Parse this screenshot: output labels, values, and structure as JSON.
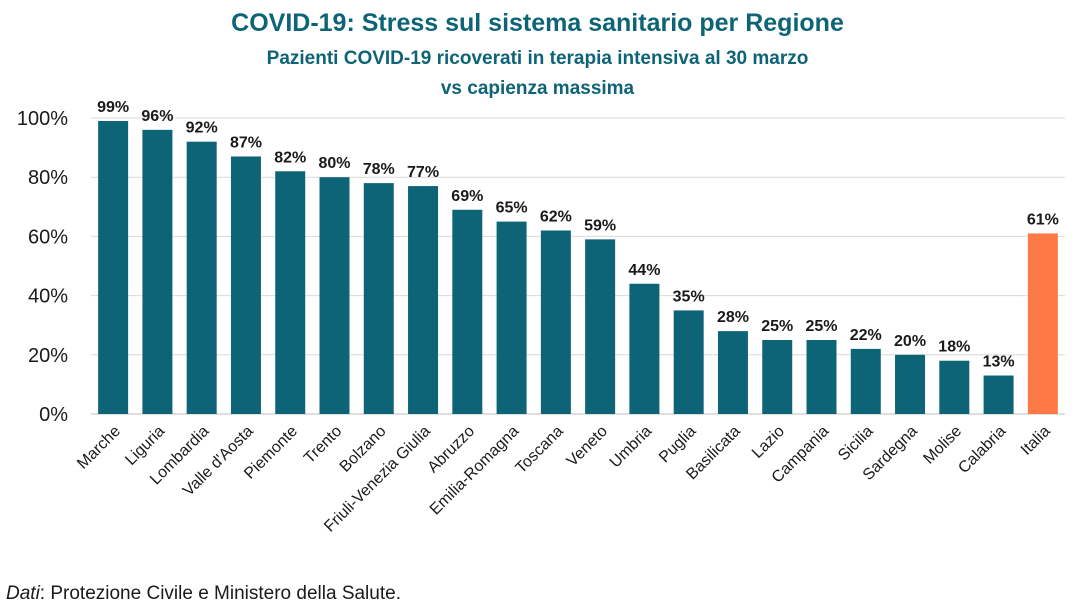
{
  "chart_data": {
    "type": "bar",
    "title": "COVID-19: Stress sul sistema sanitario per Regione",
    "subtitle": "Pazienti COVID-19 ricoverati in terapia intensiva al 30 marzo\nvs capienza massima",
    "categories": [
      "Marche",
      "Liguria",
      "Lombardia",
      "Valle d'Aosta",
      "Piemonte",
      "Trento",
      "Bolzano",
      "Friuli-Venezia Giulia",
      "Abruzzo",
      "Emilia-Romagna",
      "Toscana",
      "Veneto",
      "Umbria",
      "Puglia",
      "Basilicata",
      "Lazio",
      "Campania",
      "Sicilia",
      "Sardegna",
      "Molise",
      "Calabria",
      "Italia"
    ],
    "values": [
      99,
      96,
      92,
      87,
      82,
      80,
      78,
      77,
      69,
      65,
      62,
      59,
      44,
      35,
      28,
      25,
      25,
      22,
      20,
      18,
      13,
      61
    ],
    "data_labels": [
      "99%",
      "96%",
      "92%",
      "87%",
      "82%",
      "80%",
      "78%",
      "77%",
      "69%",
      "65%",
      "62%",
      "59%",
      "44%",
      "35%",
      "28%",
      "25%",
      "25%",
      "22%",
      "20%",
      "18%",
      "13%",
      "61%"
    ],
    "yticks": [
      "0%",
      "20%",
      "40%",
      "60%",
      "80%",
      "100%"
    ],
    "ylim": [
      0,
      100
    ],
    "grid": true,
    "legend": "none",
    "colors": {
      "region": "#0e6477",
      "national": "#fd7a47",
      "title": "#0e6477",
      "grid": "#d9d9d9"
    },
    "highlight_category": "Italia"
  },
  "source": {
    "label": "Dati",
    "text": ": Protezione Civile e Ministero della Salute."
  }
}
